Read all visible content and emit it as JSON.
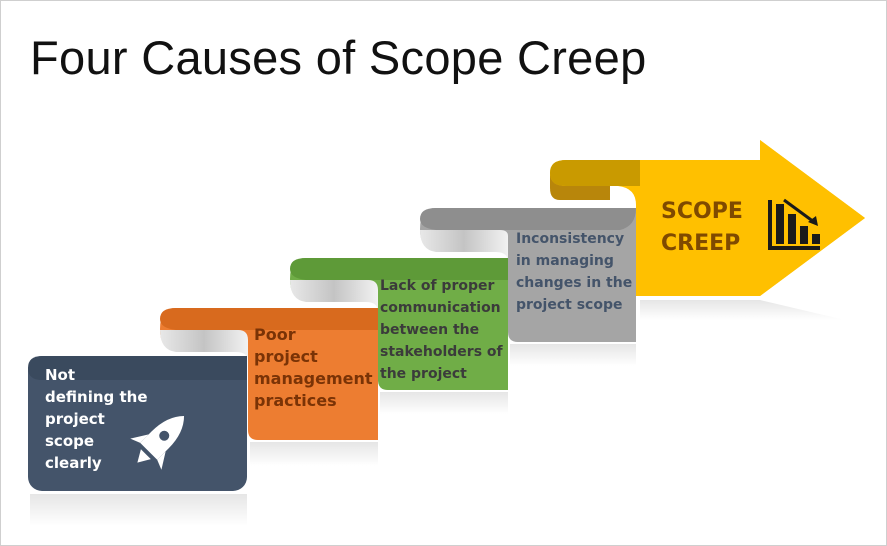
{
  "slide": {
    "title": "Four Causes of Scope Creep"
  },
  "steps": [
    {
      "text_lines": [
        "Not",
        "defining the",
        "project",
        "scope",
        "clearly"
      ],
      "color": "#44546a",
      "text_color": "#ffffff",
      "icon": "rocket-icon"
    },
    {
      "text_lines": [
        "Poor",
        "project",
        "management",
        "practices"
      ],
      "color": "#ed7d31",
      "text_color": "#7a3306"
    },
    {
      "text_lines": [
        "Lack of proper",
        "communication",
        "between the",
        "stakeholders of",
        "the project"
      ],
      "color": "#70ad47",
      "text_color": "#3b3b3b"
    },
    {
      "text_lines": [
        "Inconsistency",
        "in managing",
        "changes in the",
        "project scope"
      ],
      "color": "#a5a5a5",
      "text_color": "#44546a"
    }
  ],
  "result": {
    "lines": [
      "SCOPE",
      "CREEP"
    ],
    "color": "#ffc000",
    "text_color": "#7f4a00",
    "icon": "chart-declining-icon"
  }
}
